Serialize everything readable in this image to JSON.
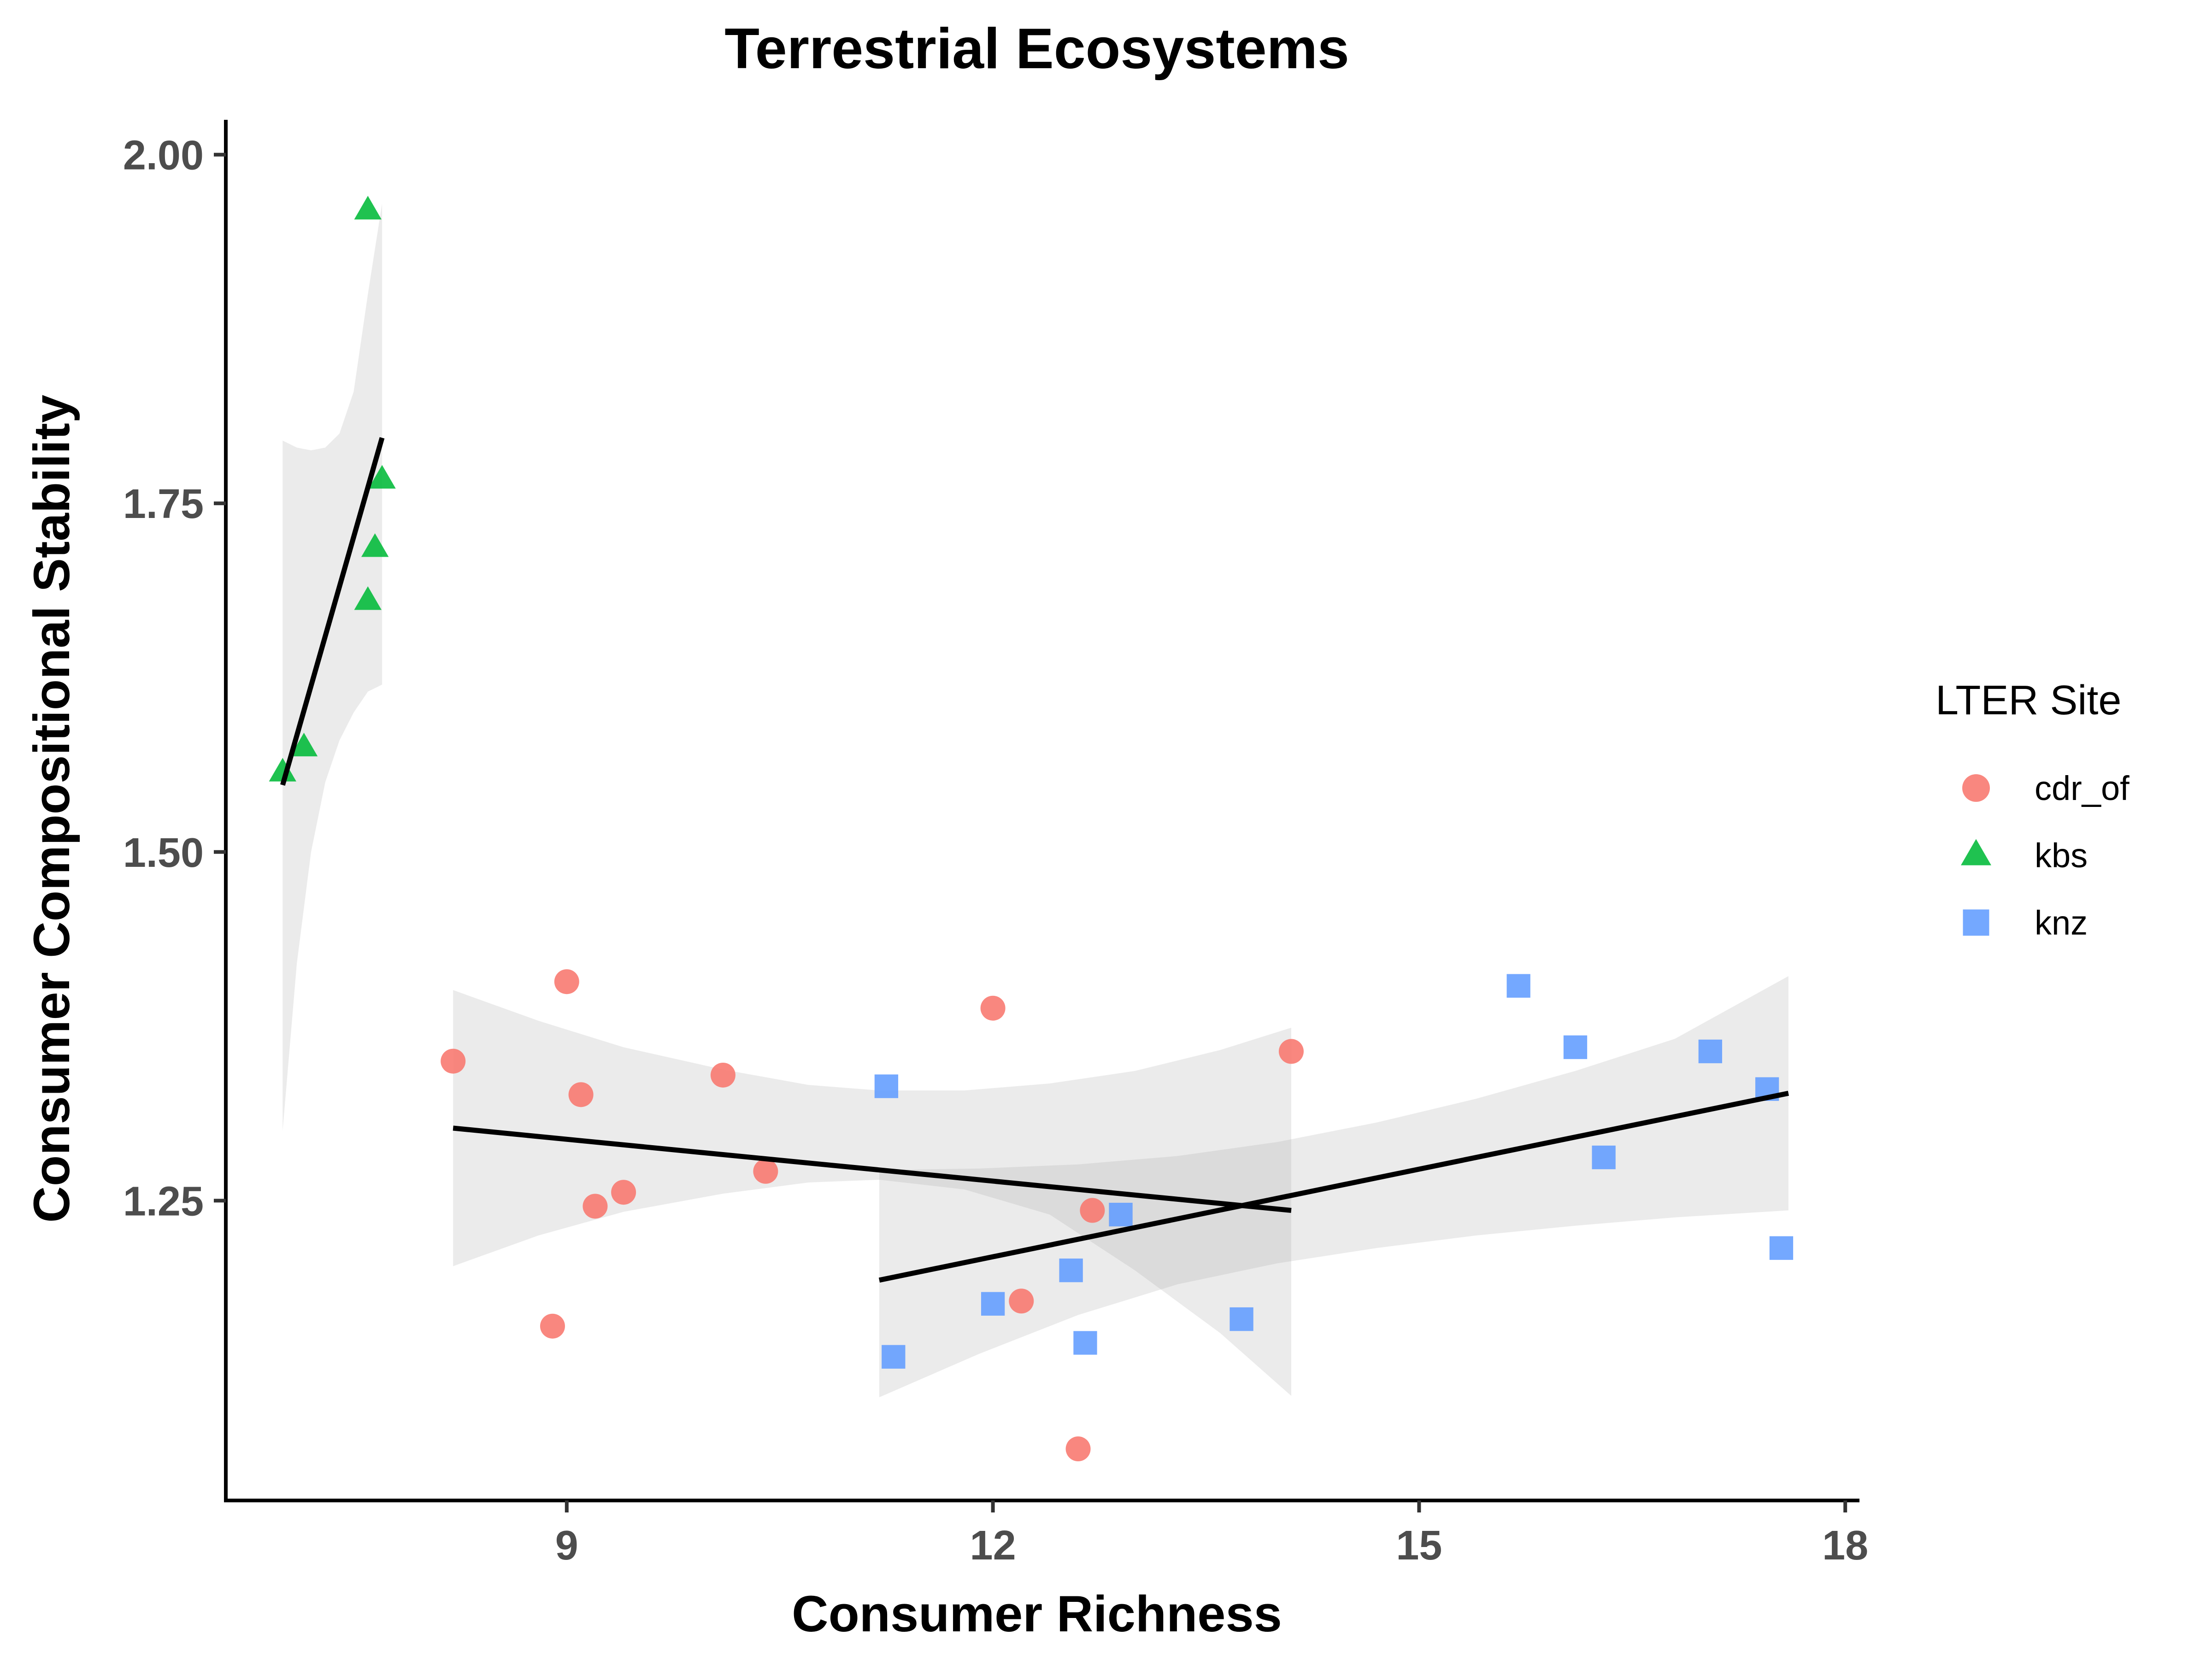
{
  "chart_data": {
    "type": "scatter",
    "title": "Terrestrial Ecosystems",
    "xlabel": "Consumer Richness",
    "ylabel": "Consumer Compositional Stability",
    "xlim": [
      6.6,
      18.1
    ],
    "ylim": [
      1.035,
      2.025
    ],
    "xticks": [
      9,
      12,
      15,
      18
    ],
    "yticks": [
      1.25,
      1.5,
      1.75,
      2.0
    ],
    "xtick_labels": [
      "9",
      "12",
      "15",
      "18"
    ],
    "ytick_labels": [
      "1.25",
      "1.50",
      "1.75",
      "2.00"
    ],
    "grid": false,
    "legend": {
      "title": "LTER Site",
      "position": "right"
    },
    "series": [
      {
        "name": "cdr_of",
        "color": "#F8766D",
        "marker": "circle",
        "points": [
          [
            8.2,
            1.35
          ],
          [
            9.0,
            1.407
          ],
          [
            9.1,
            1.326
          ],
          [
            8.9,
            1.16
          ],
          [
            9.2,
            1.246
          ],
          [
            9.4,
            1.256
          ],
          [
            10.1,
            1.34
          ],
          [
            10.4,
            1.271
          ],
          [
            12.0,
            1.388
          ],
          [
            12.2,
            1.178
          ],
          [
            12.6,
            1.072
          ],
          [
            12.7,
            1.243
          ],
          [
            14.1,
            1.357
          ]
        ],
        "fit": {
          "x_range": [
            8.2,
            14.1
          ],
          "line": [
            [
              8.2,
              1.302
            ],
            [
              14.1,
              1.243
            ]
          ],
          "band_upper": [
            [
              8.2,
              1.401
            ],
            [
              8.8,
              1.379
            ],
            [
              9.4,
              1.36
            ],
            [
              10.1,
              1.344
            ],
            [
              10.7,
              1.333
            ],
            [
              11.2,
              1.329
            ],
            [
              11.8,
              1.329
            ],
            [
              12.4,
              1.334
            ],
            [
              13.0,
              1.343
            ],
            [
              13.6,
              1.358
            ],
            [
              14.1,
              1.374
            ]
          ],
          "band_lower": [
            [
              8.2,
              1.203
            ],
            [
              8.8,
              1.225
            ],
            [
              9.4,
              1.242
            ],
            [
              10.1,
              1.255
            ],
            [
              10.7,
              1.263
            ],
            [
              11.2,
              1.265
            ],
            [
              11.8,
              1.258
            ],
            [
              12.4,
              1.24
            ],
            [
              13.0,
              1.2
            ],
            [
              13.6,
              1.155
            ],
            [
              14.1,
              1.11
            ]
          ]
        }
      },
      {
        "name": "kbs",
        "color": "#00BA38",
        "marker": "triangle",
        "points": [
          [
            7.0,
            1.557
          ],
          [
            7.15,
            1.575
          ],
          [
            7.6,
            1.96
          ],
          [
            7.6,
            1.68
          ],
          [
            7.65,
            1.718
          ],
          [
            7.7,
            1.767
          ]
        ],
        "fit": {
          "x_range": [
            7.0,
            7.7
          ],
          "line": [
            [
              7.0,
              1.548
            ],
            [
              7.7,
              1.797
            ]
          ],
          "band_upper": [
            [
              7.0,
              1.795
            ],
            [
              7.1,
              1.79
            ],
            [
              7.2,
              1.788
            ],
            [
              7.3,
              1.79
            ],
            [
              7.4,
              1.8
            ],
            [
              7.5,
              1.83
            ],
            [
              7.6,
              1.9
            ],
            [
              7.7,
              1.965
            ]
          ],
          "band_lower": [
            [
              7.0,
              1.3
            ],
            [
              7.1,
              1.42
            ],
            [
              7.2,
              1.5
            ],
            [
              7.3,
              1.55
            ],
            [
              7.4,
              1.58
            ],
            [
              7.5,
              1.6
            ],
            [
              7.6,
              1.615
            ],
            [
              7.7,
              1.62
            ]
          ]
        }
      },
      {
        "name": "knz",
        "color": "#619CFF",
        "marker": "square",
        "points": [
          [
            11.25,
            1.332
          ],
          [
            11.3,
            1.138
          ],
          [
            12.0,
            1.176
          ],
          [
            12.55,
            1.2
          ],
          [
            12.65,
            1.148
          ],
          [
            12.9,
            1.24
          ],
          [
            13.75,
            1.165
          ],
          [
            15.7,
            1.404
          ],
          [
            16.1,
            1.36
          ],
          [
            16.3,
            1.281
          ],
          [
            17.05,
            1.357
          ],
          [
            17.45,
            1.33
          ],
          [
            17.55,
            1.216
          ]
        ],
        "fit": {
          "x_range": [
            11.2,
            17.6
          ],
          "line": [
            [
              11.2,
              1.193
            ],
            [
              17.6,
              1.327
            ]
          ],
          "band_upper": [
            [
              11.2,
              1.272
            ],
            [
              11.9,
              1.273
            ],
            [
              12.6,
              1.276
            ],
            [
              13.3,
              1.282
            ],
            [
              14.0,
              1.292
            ],
            [
              14.7,
              1.306
            ],
            [
              15.4,
              1.323
            ],
            [
              16.1,
              1.343
            ],
            [
              16.8,
              1.366
            ],
            [
              17.6,
              1.411
            ]
          ],
          "band_lower": [
            [
              11.2,
              1.109
            ],
            [
              11.9,
              1.14
            ],
            [
              12.6,
              1.168
            ],
            [
              13.3,
              1.19
            ],
            [
              14.0,
              1.205
            ],
            [
              14.7,
              1.216
            ],
            [
              15.4,
              1.225
            ],
            [
              16.1,
              1.232
            ],
            [
              16.8,
              1.238
            ],
            [
              17.6,
              1.243
            ]
          ]
        }
      }
    ]
  }
}
